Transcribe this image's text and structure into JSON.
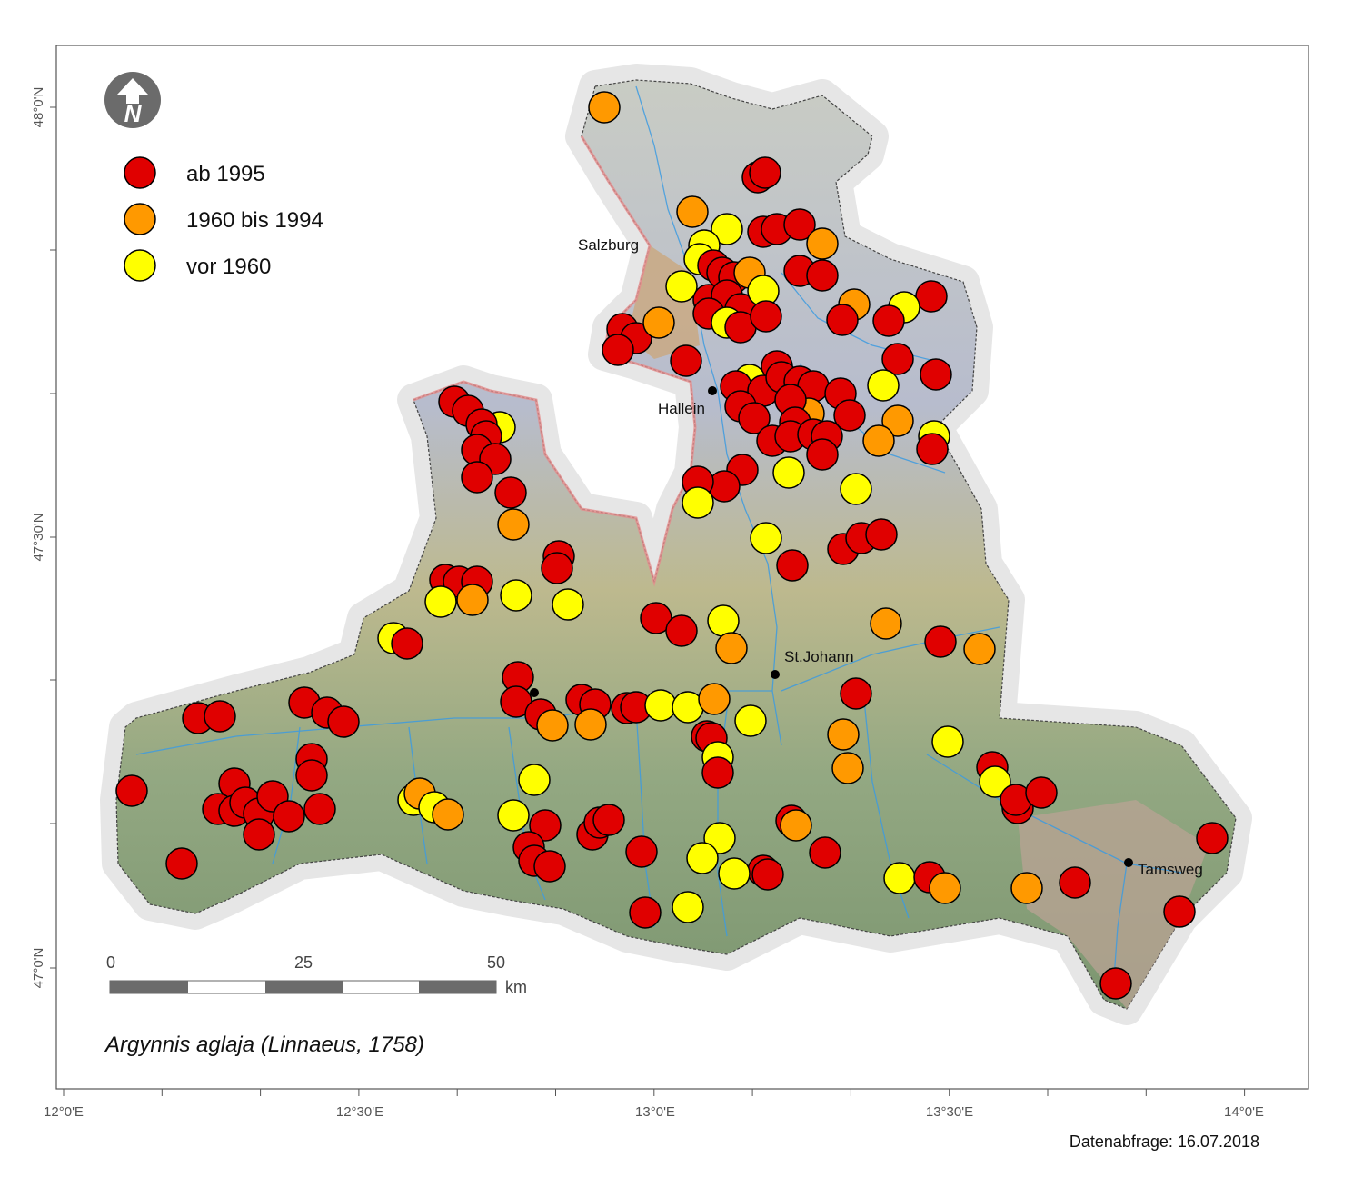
{
  "map": {
    "legend": [
      {
        "label": "ab 1995",
        "color": "#e00000"
      },
      {
        "label": "1960 bis 1994",
        "color": "#ff9900"
      },
      {
        "label": "vor 1960",
        "color": "#ffff00"
      }
    ],
    "north_arrow": {
      "icon": "north-arrow-icon",
      "letter": "N"
    },
    "lat_ticks": [
      "48°0'N",
      "47°30'N",
      "47°0'N"
    ],
    "lon_ticks": [
      "12°0'E",
      "12°30'E",
      "13°0'E",
      "13°30'E",
      "14°0'E"
    ],
    "cities": [
      {
        "name": "Salzburg"
      },
      {
        "name": "Hallein"
      },
      {
        "name": "St.Johann"
      },
      {
        "name": "Tamsweg"
      }
    ],
    "scalebar": {
      "ticks": [
        "0",
        "25",
        "50"
      ],
      "unit": "km"
    },
    "species": "Argynnis aglaja (Linnaeus, 1758)",
    "date": "Datenabfrage: 16.07.2018",
    "point_colors": {
      "ab_1995": "#e00000",
      "1960_1994": "#ff9900",
      "vor_1960": "#ffff00"
    }
  }
}
